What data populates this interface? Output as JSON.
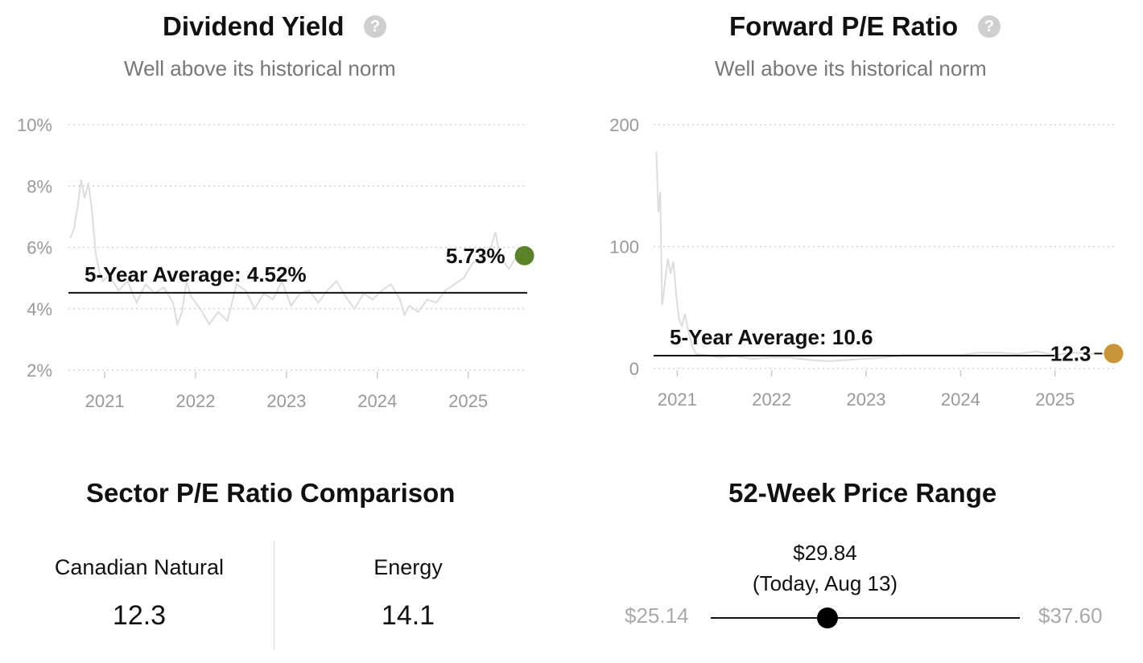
{
  "dividend": {
    "title": "Dividend Yield",
    "subtitle": "Well above its historical norm",
    "help_icon": "question-circle-icon"
  },
  "pe": {
    "title": "Forward P/E Ratio",
    "subtitle": "Well above its historical norm",
    "help_icon": "question-circle-icon"
  },
  "sector": {
    "title": "Sector P/E Ratio Comparison",
    "left_name": "Canadian Natural",
    "left_value": "12.3",
    "right_name": "Energy",
    "right_value": "14.1"
  },
  "range": {
    "title": "52-Week Price Range",
    "low": "$25.14",
    "high": "$37.60",
    "current": "$29.84",
    "current_note": "(Today, Aug 13)",
    "current_value": 29.84,
    "low_value": 25.14,
    "high_value": 37.6
  },
  "colors": {
    "dividend_marker": "#5a8228",
    "pe_marker": "#c8953a",
    "series_line": "#dddddd",
    "grid": "#cccccc"
  },
  "chart_data": [
    {
      "type": "line",
      "title": "Dividend Yield",
      "subtitle": "Well above its historical norm",
      "ylim": [
        2,
        10
      ],
      "y_ticks": [
        "10%",
        "8%",
        "6%",
        "4%",
        "2%"
      ],
      "y_tick_values": [
        10,
        8,
        6,
        4,
        2
      ],
      "x_ticks": [
        "2021",
        "2022",
        "2023",
        "2024",
        "2025"
      ],
      "x_tick_values": [
        2021.0,
        2022.0,
        2023.0,
        2024.0,
        2025.0
      ],
      "xlim": [
        2020.6,
        2025.65
      ],
      "grid": true,
      "average": {
        "label": "5-Year Average: 4.52%",
        "value": 4.52
      },
      "current": {
        "label": "5.73%",
        "x": 2025.62,
        "value": 5.73
      },
      "series": [
        {
          "x": [
            2020.62,
            2020.66,
            2020.7,
            2020.74,
            2020.78,
            2020.82,
            2020.86,
            2020.9,
            2020.94,
            2020.98,
            2021.05,
            2021.15,
            2021.25,
            2021.35,
            2021.45,
            2021.55,
            2021.65,
            2021.75,
            2021.8,
            2021.85,
            2021.9,
            2021.95,
            2022.05,
            2022.15,
            2022.25,
            2022.35,
            2022.45,
            2022.55,
            2022.65,
            2022.75,
            2022.85,
            2022.95,
            2023.05,
            2023.15,
            2023.25,
            2023.35,
            2023.45,
            2023.55,
            2023.65,
            2023.75,
            2023.85,
            2023.95,
            2024.05,
            2024.15,
            2024.25,
            2024.3,
            2024.35,
            2024.45,
            2024.55,
            2024.65,
            2024.75,
            2024.85,
            2024.95,
            2025.05,
            2025.15,
            2025.25,
            2025.3,
            2025.35,
            2025.45,
            2025.55,
            2025.62
          ],
          "values": [
            6.3,
            6.6,
            7.3,
            8.2,
            7.6,
            8.1,
            7.2,
            5.8,
            5.2,
            4.9,
            5.1,
            4.6,
            4.9,
            4.2,
            4.8,
            4.5,
            4.7,
            4.2,
            3.5,
            3.9,
            4.9,
            4.4,
            4.0,
            3.5,
            3.9,
            3.6,
            4.8,
            4.6,
            4.0,
            4.5,
            4.3,
            4.9,
            4.1,
            4.5,
            4.6,
            4.2,
            4.6,
            4.9,
            4.4,
            4.0,
            4.5,
            4.3,
            4.6,
            4.8,
            4.3,
            3.8,
            4.1,
            3.9,
            4.3,
            4.2,
            4.6,
            4.8,
            5.0,
            5.5,
            5.6,
            6.0,
            6.5,
            5.7,
            5.3,
            5.8,
            5.73
          ]
        }
      ]
    },
    {
      "type": "line",
      "title": "Forward P/E Ratio",
      "subtitle": "Well above its historical norm",
      "ylim": [
        0,
        200
      ],
      "y_ticks": [
        "200",
        "100",
        "0"
      ],
      "y_tick_values": [
        200,
        100,
        0
      ],
      "x_ticks": [
        "2021",
        "2022",
        "2023",
        "2024",
        "2025"
      ],
      "x_tick_values": [
        2021.0,
        2022.0,
        2023.0,
        2024.0,
        2025.0
      ],
      "xlim": [
        2020.75,
        2025.65
      ],
      "grid": true,
      "average": {
        "label": "5-Year Average: 10.6",
        "value": 10.6
      },
      "current": {
        "label": "12.3",
        "x": 2025.62,
        "value": 12.3
      },
      "series": [
        {
          "x": [
            2020.78,
            2020.8,
            2020.82,
            2020.84,
            2020.87,
            2020.9,
            2020.93,
            2020.96,
            2020.99,
            2021.02,
            2021.05,
            2021.08,
            2021.12,
            2021.16,
            2021.2,
            2021.3,
            2021.45,
            2021.6,
            2021.8,
            2022.0,
            2022.2,
            2022.4,
            2022.6,
            2022.8,
            2023.0,
            2023.2,
            2023.4,
            2023.6,
            2023.8,
            2024.0,
            2024.2,
            2024.4,
            2024.6,
            2024.8,
            2025.0,
            2025.2,
            2025.4,
            2025.62
          ],
          "values": [
            178,
            128,
            145,
            52,
            70,
            90,
            78,
            88,
            60,
            40,
            35,
            45,
            30,
            18,
            12,
            11,
            9,
            10,
            8,
            9,
            9,
            7,
            6,
            7,
            8,
            9,
            11,
            11,
            11,
            11,
            13,
            13,
            12,
            14,
            11,
            13,
            12,
            12.3
          ]
        }
      ]
    }
  ]
}
